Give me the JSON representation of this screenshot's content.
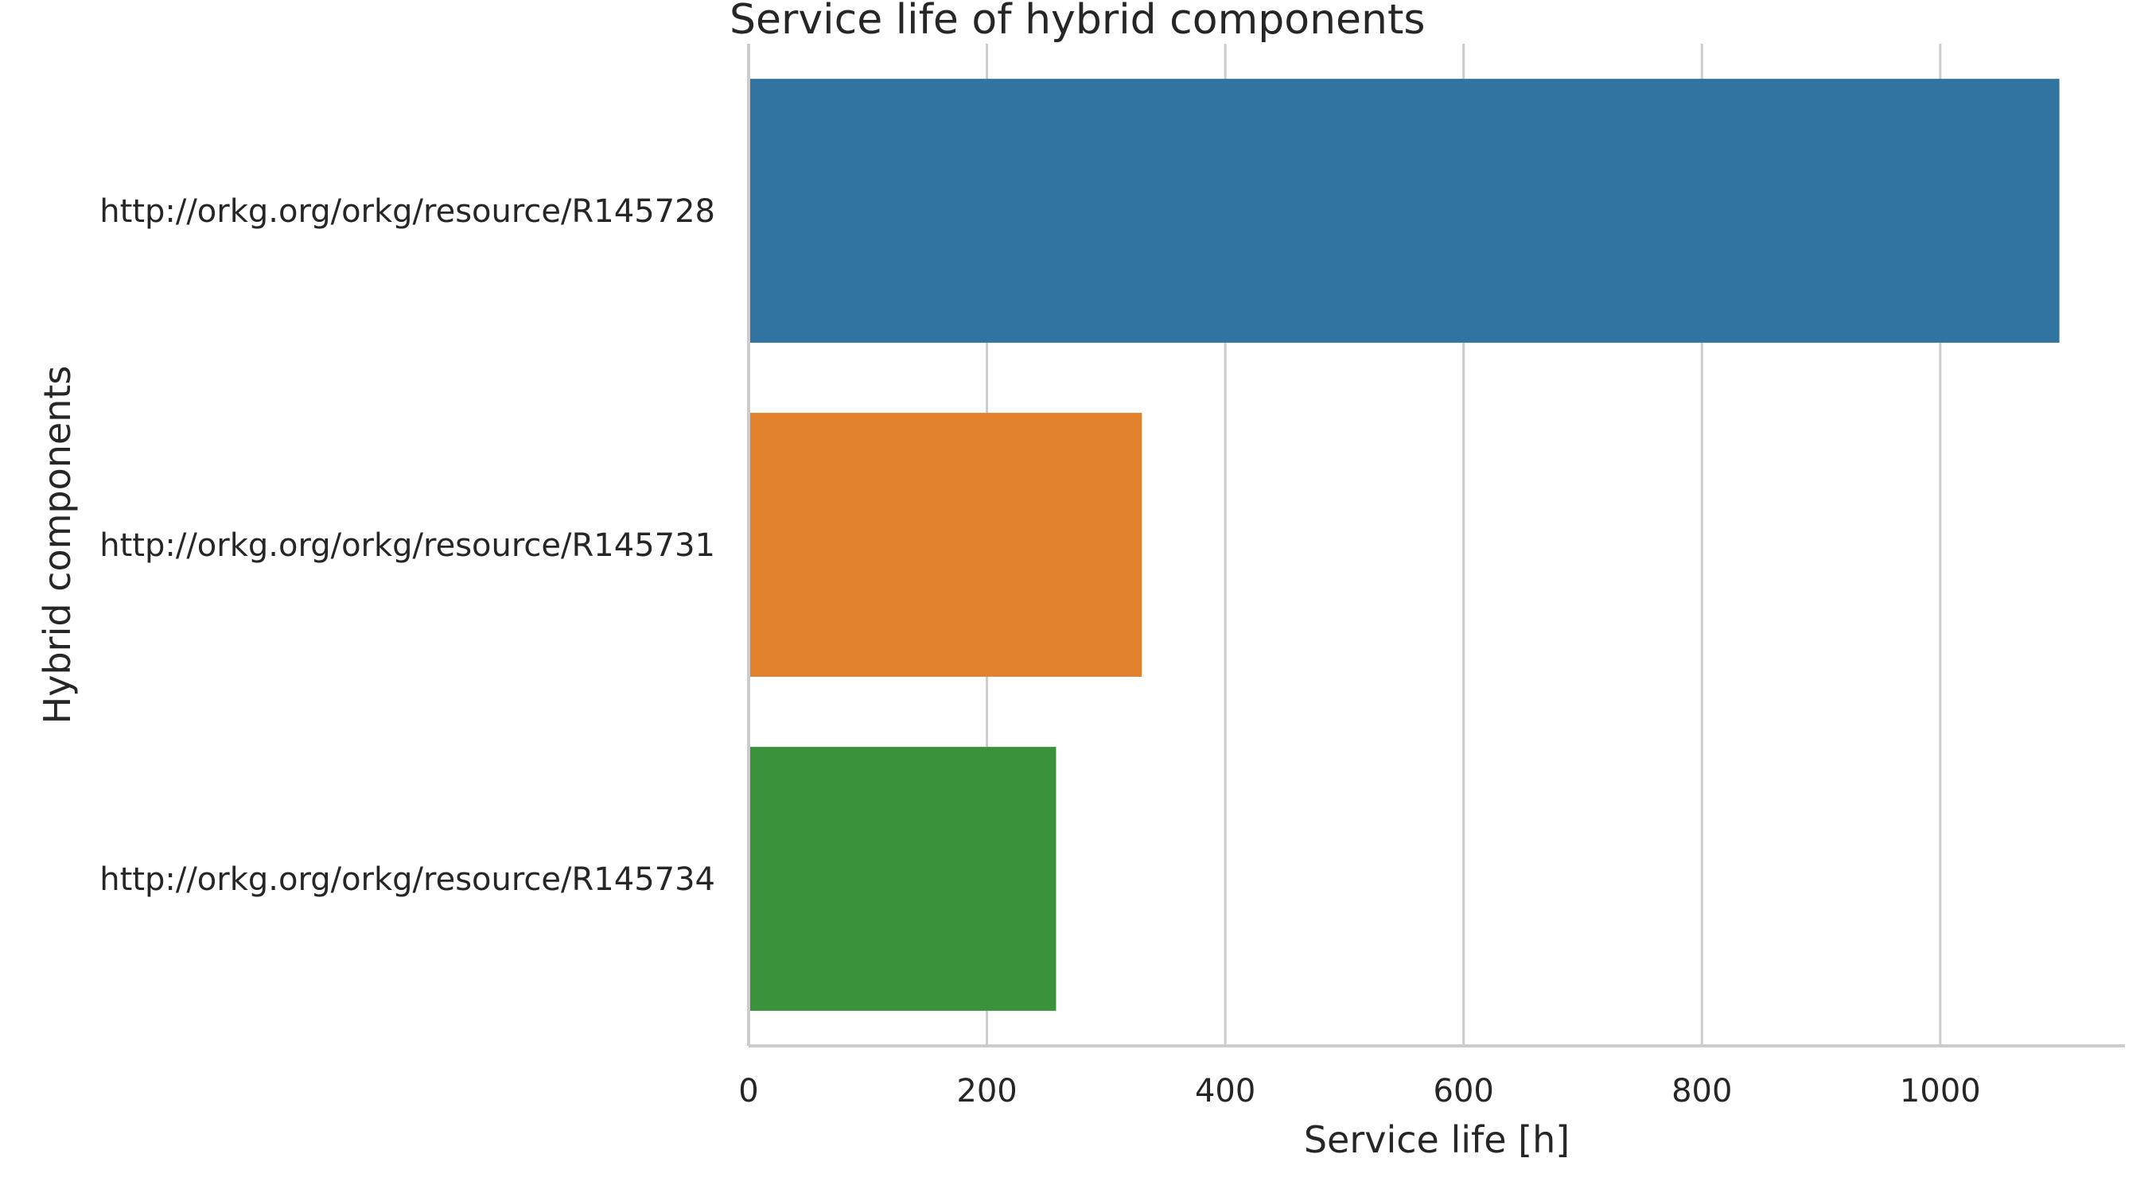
{
  "chart_data": {
    "type": "bar",
    "orientation": "horizontal",
    "title": "Service life of hybrid components",
    "xlabel": "Service life [h]",
    "ylabel": "Hybrid components",
    "categories": [
      "http://orkg.org/orkg/resource/R145728",
      "http://orkg.org/orkg/resource/R145731",
      "http://orkg.org/orkg/resource/R145734"
    ],
    "values": [
      1100,
      330,
      258
    ],
    "colors": [
      "#3274a1",
      "#e1812c",
      "#3a923a"
    ],
    "xlim": [
      0,
      1155
    ],
    "xticks": [
      0,
      200,
      400,
      600,
      800,
      1000
    ],
    "grid": "vertical",
    "legend": "none"
  }
}
